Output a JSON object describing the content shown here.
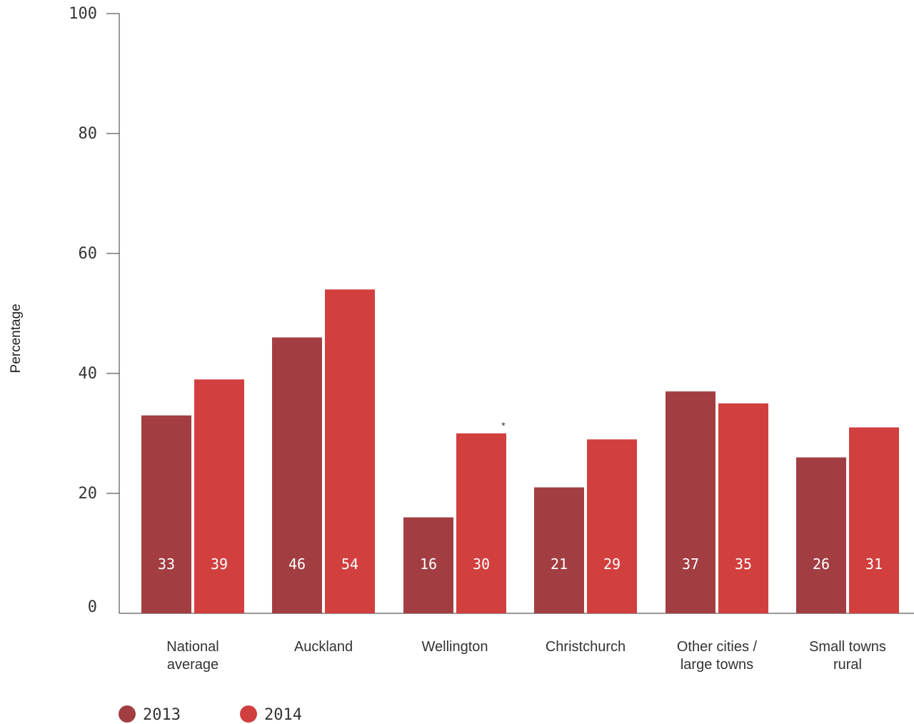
{
  "chart_data": {
    "type": "bar",
    "ylabel": "Percentage",
    "xlabel": "",
    "ylim": [
      0,
      100
    ],
    "yticks": [
      0,
      20,
      40,
      60,
      80,
      100
    ],
    "categories": [
      [
        "National",
        "average"
      ],
      [
        "Auckland"
      ],
      [
        "Wellington"
      ],
      [
        "Christchurch"
      ],
      [
        "Other cities /",
        "large towns"
      ],
      [
        "Small towns",
        "rural"
      ]
    ],
    "series": [
      {
        "name": "2013",
        "color": "#a23e42",
        "values": [
          33,
          46,
          16,
          21,
          37,
          26
        ]
      },
      {
        "name": "2014",
        "color": "#d23f3f",
        "values": [
          39,
          54,
          30,
          29,
          35,
          31
        ]
      }
    ],
    "annotations": [
      {
        "text": "*",
        "category_index": 2,
        "series_index": 1
      }
    ],
    "legend": "bottom-left",
    "grid": false
  }
}
